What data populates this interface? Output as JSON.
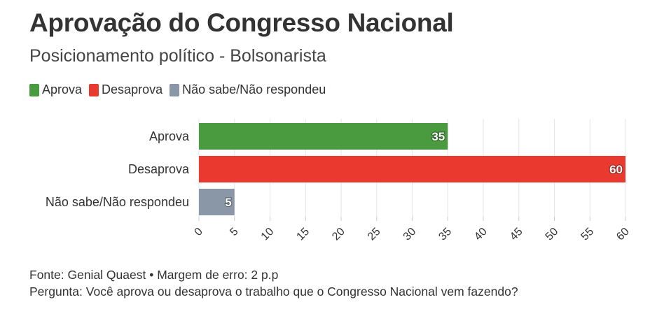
{
  "title": "Aprovação do Congresso Nacional",
  "subtitle": "Posicionamento político - Bolsonarista",
  "legend": [
    {
      "label": "Aprova",
      "color": "#4a9a3f"
    },
    {
      "label": "Desaprova",
      "color": "#ea3a30"
    },
    {
      "label": "Não sabe/Não respondeu",
      "color": "#8a97a6"
    }
  ],
  "chart_data": {
    "type": "bar",
    "orientation": "horizontal",
    "categories": [
      "Aprova",
      "Desaprova",
      "Não sabe/Não respondeu"
    ],
    "values": [
      35,
      60,
      5
    ],
    "colors": [
      "#4a9a3f",
      "#ea3a30",
      "#8a97a6"
    ],
    "data_labels": [
      "35",
      "60",
      "5"
    ],
    "xlim": [
      0,
      60
    ],
    "x_ticks": [
      0,
      5,
      10,
      15,
      20,
      25,
      30,
      35,
      40,
      45,
      50,
      55,
      60
    ],
    "grid": true,
    "legend_position": "top-left"
  },
  "footer": {
    "source": "Fonte: Genial Quaest • Margem de erro: 2 p.p",
    "question": "Pergunta: Você aprova ou desaprova o trabalho que o Congresso Nacional vem fazendo?"
  }
}
